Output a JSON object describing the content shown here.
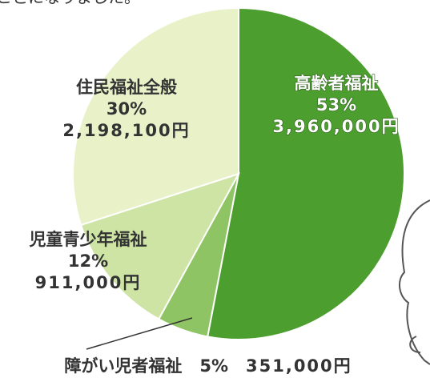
{
  "header": {
    "text": "ことになりました。"
  },
  "chart_data": {
    "type": "pie",
    "categories": [
      "高齢者福祉",
      "障がい児者福祉",
      "児童青少年福祉",
      "住民福祉全般"
    ],
    "values": [
      53,
      5,
      12,
      30
    ],
    "value_labels": [
      "53%",
      "5%",
      "12%",
      "30%"
    ],
    "amounts": [
      3960000,
      351000,
      911000,
      2198100
    ],
    "amount_labels": [
      "3,960,000円",
      "351,000円",
      "911,000円",
      "2,198,100円"
    ],
    "colors": [
      "#4c9e2f",
      "#8ec463",
      "#cde4a4",
      "#e9f1c8"
    ]
  }
}
